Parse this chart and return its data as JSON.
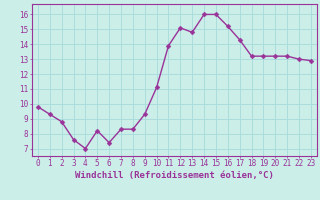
{
  "x": [
    0,
    1,
    2,
    3,
    4,
    5,
    6,
    7,
    8,
    9,
    10,
    11,
    12,
    13,
    14,
    15,
    16,
    17,
    18,
    19,
    20,
    21,
    22,
    23
  ],
  "y": [
    9.8,
    9.3,
    8.8,
    7.6,
    7.0,
    8.2,
    7.4,
    8.3,
    8.3,
    9.3,
    11.1,
    13.9,
    15.1,
    14.8,
    16.0,
    16.0,
    15.2,
    14.3,
    13.2,
    13.2,
    13.2,
    13.2,
    13.0,
    12.9
  ],
  "line_color": "#993399",
  "marker": "D",
  "marker_size": 2.5,
  "linewidth": 1.0,
  "xlabel": "Windchill (Refroidissement éolien,°C)",
  "xlabel_fontsize": 6.5,
  "ylabel_ticks": [
    7,
    8,
    9,
    10,
    11,
    12,
    13,
    14,
    15,
    16
  ],
  "xtick_labels": [
    "0",
    "1",
    "2",
    "3",
    "4",
    "5",
    "6",
    "7",
    "8",
    "9",
    "10",
    "11",
    "12",
    "13",
    "14",
    "15",
    "16",
    "17",
    "18",
    "19",
    "20",
    "21",
    "22",
    "23"
  ],
  "ylim": [
    6.5,
    16.7
  ],
  "xlim": [
    -0.5,
    23.5
  ],
  "bg_color": "#cceee8",
  "grid_color": "#aadddd",
  "tick_color": "#993399",
  "tick_fontsize": 5.5,
  "spine_color": "#993399"
}
